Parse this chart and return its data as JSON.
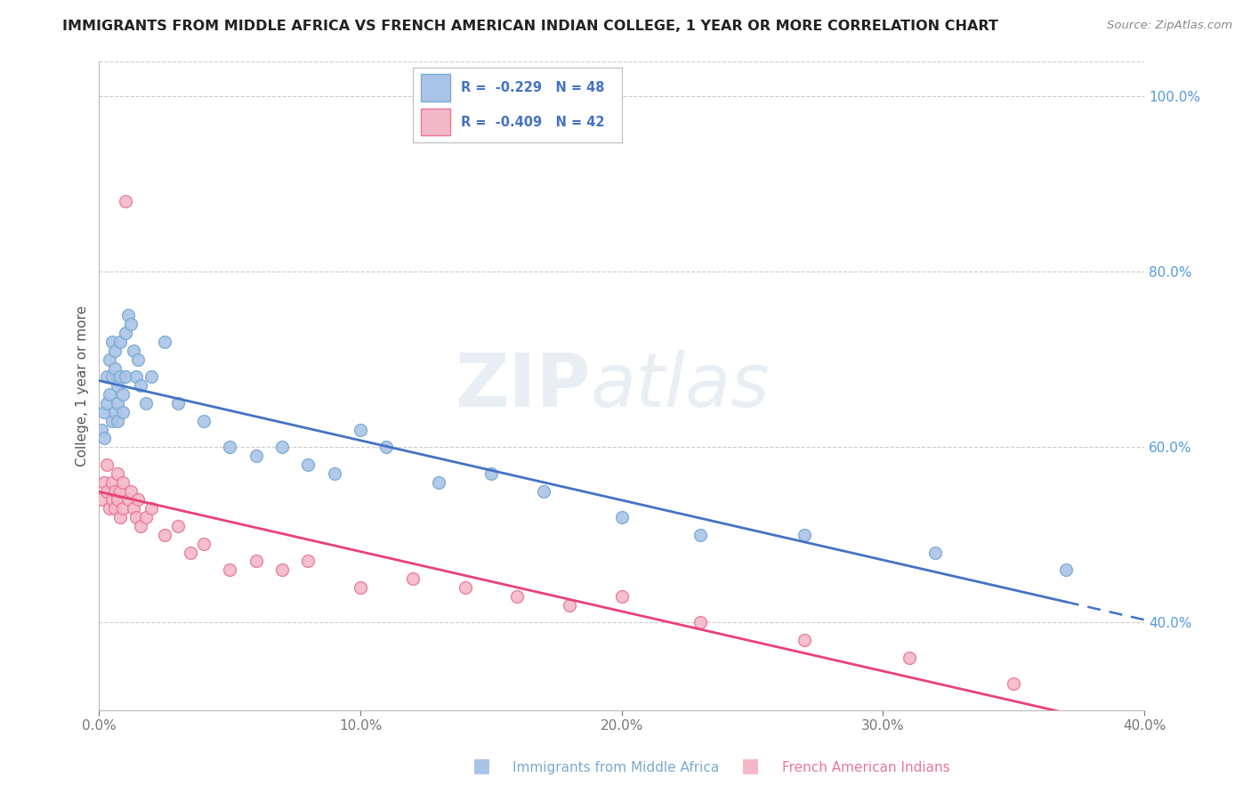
{
  "title": "IMMIGRANTS FROM MIDDLE AFRICA VS FRENCH AMERICAN INDIAN COLLEGE, 1 YEAR OR MORE CORRELATION CHART",
  "source_text": "Source: ZipAtlas.com",
  "xlabel_blue": "Immigrants from Middle Africa",
  "xlabel_pink": "French American Indians",
  "ylabel": "College, 1 year or more",
  "watermark": "ZIPatlas",
  "R_blue": -0.229,
  "N_blue": 48,
  "R_pink": -0.409,
  "N_pink": 42,
  "xlim": [
    0.0,
    0.4
  ],
  "ylim": [
    0.3,
    1.04
  ],
  "right_yticks": [
    0.4,
    0.6,
    0.8,
    1.0
  ],
  "right_yticklabels": [
    "40.0%",
    "60.0%",
    "80.0%",
    "100.0%"
  ],
  "xticks": [
    0.0,
    0.1,
    0.2,
    0.3,
    0.4
  ],
  "xticklabels": [
    "0.0%",
    "10.0%",
    "20.0%",
    "30.0%",
    "40.0%"
  ],
  "grid_color": "#cccccc",
  "background_color": "#ffffff",
  "blue_scatter_color": "#aac4e8",
  "blue_scatter_edge": "#7aaad0",
  "pink_scatter_color": "#f4b8c8",
  "pink_scatter_edge": "#e87898",
  "blue_line_color": "#4472c4",
  "pink_line_color": "#e8417a",
  "blue_x": [
    0.001,
    0.002,
    0.002,
    0.003,
    0.003,
    0.004,
    0.004,
    0.005,
    0.005,
    0.005,
    0.006,
    0.006,
    0.006,
    0.007,
    0.007,
    0.007,
    0.008,
    0.008,
    0.009,
    0.009,
    0.01,
    0.01,
    0.011,
    0.012,
    0.013,
    0.014,
    0.015,
    0.016,
    0.018,
    0.02,
    0.025,
    0.03,
    0.04,
    0.05,
    0.06,
    0.07,
    0.08,
    0.09,
    0.1,
    0.11,
    0.13,
    0.15,
    0.17,
    0.2,
    0.23,
    0.27,
    0.32,
    0.37
  ],
  "blue_y": [
    0.62,
    0.64,
    0.61,
    0.68,
    0.65,
    0.7,
    0.66,
    0.72,
    0.68,
    0.63,
    0.64,
    0.69,
    0.71,
    0.67,
    0.65,
    0.63,
    0.68,
    0.72,
    0.66,
    0.64,
    0.73,
    0.68,
    0.75,
    0.74,
    0.71,
    0.68,
    0.7,
    0.67,
    0.65,
    0.68,
    0.72,
    0.65,
    0.63,
    0.6,
    0.59,
    0.6,
    0.58,
    0.57,
    0.62,
    0.6,
    0.56,
    0.57,
    0.55,
    0.52,
    0.5,
    0.5,
    0.48,
    0.46
  ],
  "pink_x": [
    0.001,
    0.002,
    0.003,
    0.003,
    0.004,
    0.005,
    0.005,
    0.006,
    0.006,
    0.007,
    0.007,
    0.008,
    0.008,
    0.009,
    0.009,
    0.01,
    0.011,
    0.012,
    0.013,
    0.014,
    0.015,
    0.016,
    0.018,
    0.02,
    0.025,
    0.03,
    0.035,
    0.04,
    0.05,
    0.06,
    0.07,
    0.08,
    0.1,
    0.12,
    0.14,
    0.16,
    0.18,
    0.2,
    0.23,
    0.27,
    0.31,
    0.35
  ],
  "pink_y": [
    0.54,
    0.56,
    0.58,
    0.55,
    0.53,
    0.56,
    0.54,
    0.55,
    0.53,
    0.57,
    0.54,
    0.55,
    0.52,
    0.56,
    0.53,
    0.88,
    0.54,
    0.55,
    0.53,
    0.52,
    0.54,
    0.51,
    0.52,
    0.53,
    0.5,
    0.51,
    0.48,
    0.49,
    0.46,
    0.47,
    0.46,
    0.47,
    0.44,
    0.45,
    0.44,
    0.43,
    0.42,
    0.43,
    0.4,
    0.38,
    0.36,
    0.33
  ]
}
